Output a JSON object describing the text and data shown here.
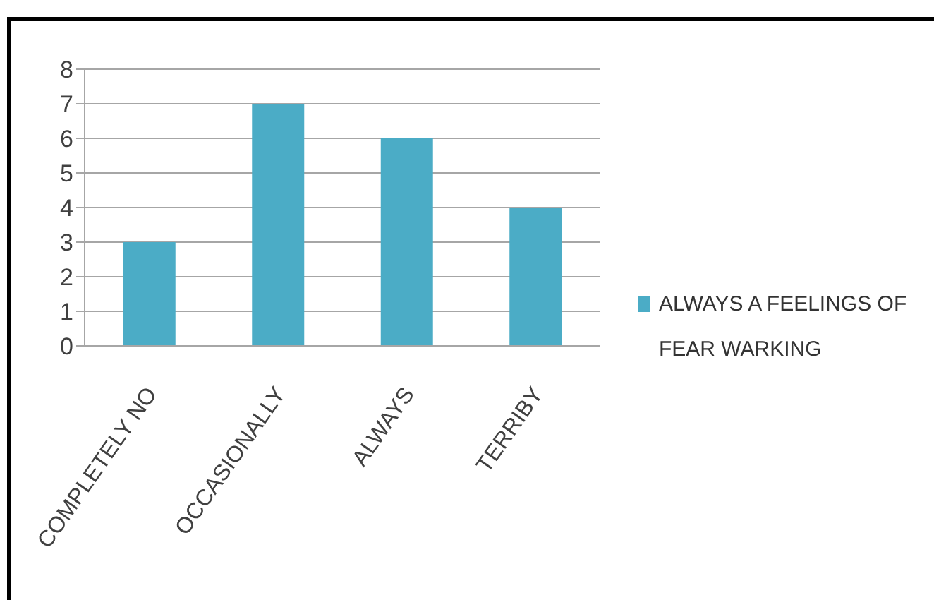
{
  "chart_data": {
    "type": "bar",
    "categories": [
      "COMPLETELY NO",
      "OCCASIONALLY",
      "ALWAYS",
      "TERRIBY"
    ],
    "series": [
      {
        "name": "ALWAYS A FEELINGS OF FEAR WARKING",
        "color": "#4bacc6",
        "values": [
          3,
          7,
          6,
          4
        ]
      }
    ],
    "ylim": [
      0,
      8
    ],
    "yticks": [
      0,
      1,
      2,
      3,
      4,
      5,
      6,
      7,
      8
    ],
    "grid": "y",
    "legend": "right"
  }
}
